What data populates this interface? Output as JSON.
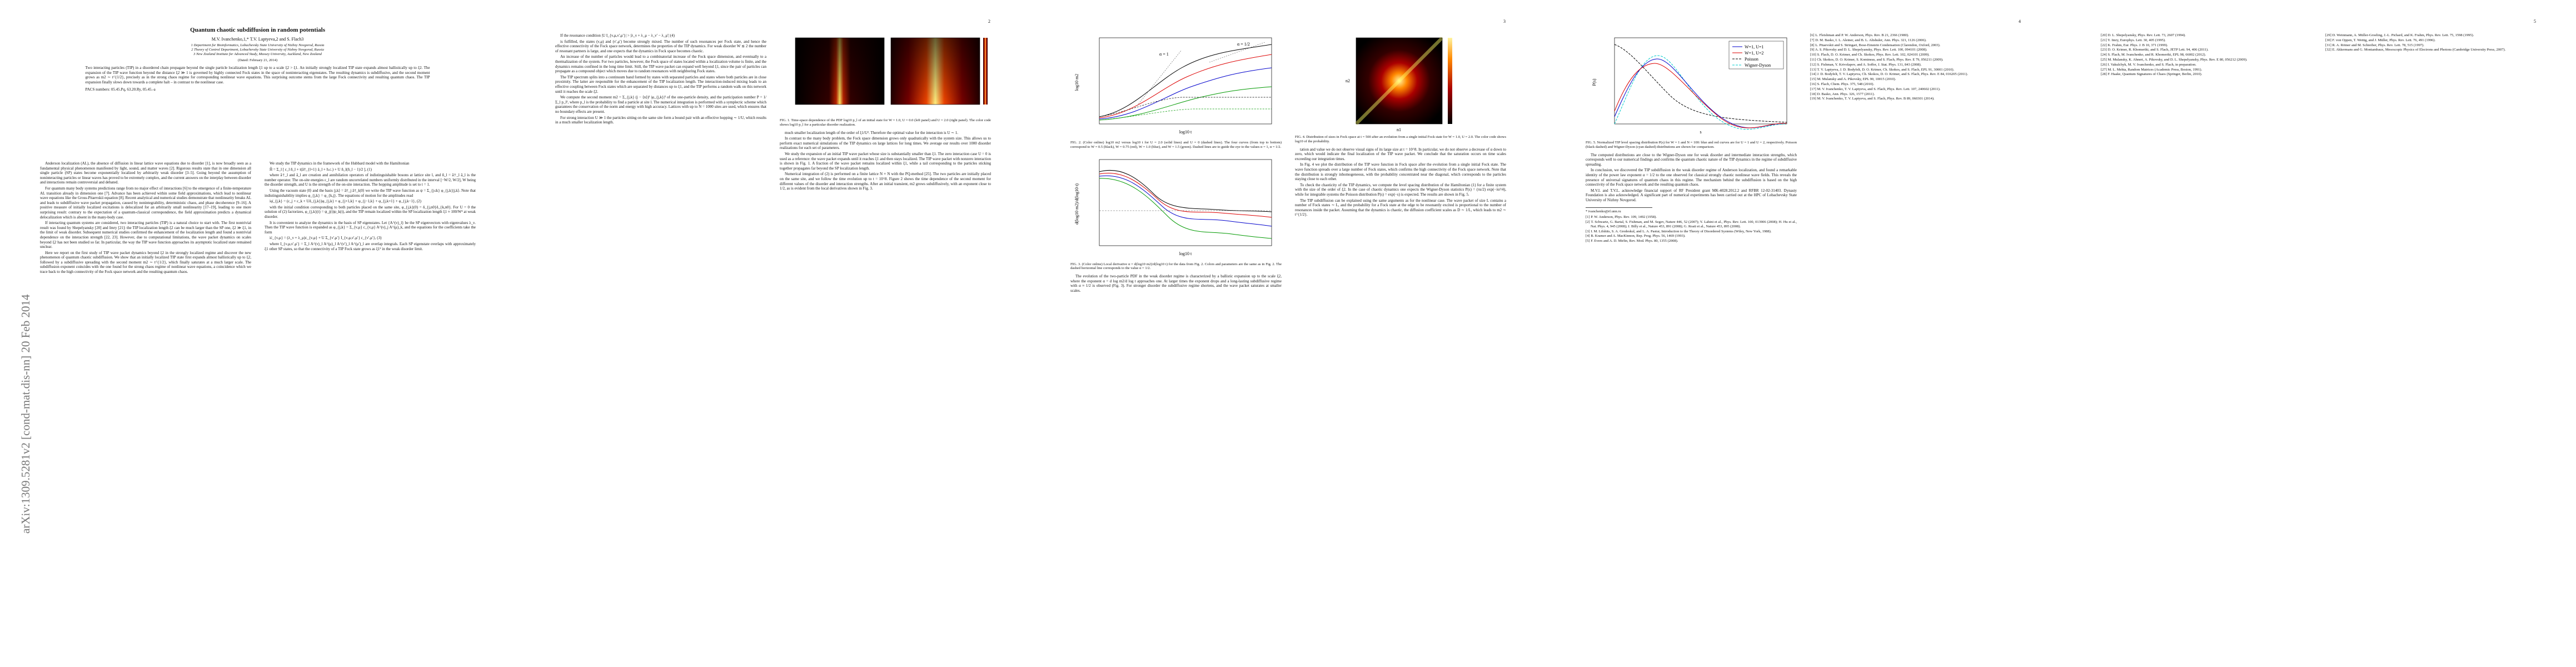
{
  "sidebar": "arXiv:1309.5281v2 [cond-mat.dis-nn] 20 Feb 2014",
  "title": "Quantum chaotic subdiffusion in random potentials",
  "authors": "M.V. Ivanchenko,1,* T.V. Laptyeva,2 and S. Flach3",
  "affiliations": [
    "1 Department for Bioinformatics, Lobachevsky State University of Nizhny Novgorod, Russia",
    "2 Theory of Control Department, Lobachevsky State University of Nizhny Novgorod, Russia",
    "3 New Zealand Institute for Advanced Study, Massey University, Auckland, New Zealand"
  ],
  "date": "(Dated: February 21, 2014)",
  "abstract": "Two interacting particles (TIP) in a disordered chain propagate beyond the single particle localization length ξ1 up to a scale ξ2 > ξ1. An initially strongly localized TIP state expands almost ballistically up to ξ2. The expansion of the TIP wave function beyond the distance ξ2 ≫ 1 is governed by highly connected Fock states in the space of noninteracting eigenstates. The resulting dynamics is subdiffusive, and the second moment grows as m2 ∼ t^{1/2}, precisely as in the strong chaos regime for corresponding nonlinear wave equations. This surprising outcome stems from the large Fock connectivity and resulting quantum chaos. The TIP expansion finally slows down towards a complete halt – in contrast to the nonlinear case.",
  "pacs": "PACS numbers: 05.45.Pq, 63.20.Ry, 05.45.-a",
  "page_numbers": [
    "2",
    "3",
    "4",
    "5"
  ],
  "figures": [
    {
      "caption": "FIG. 1. Time-space dependence of the PDF log10 p_l of an initial state for W = 1.0, U = 0.0 (left panel) and U = 2.0 (right panel). The color code shows log10 p_l for a particular disorder realization."
    },
    {
      "caption": "FIG. 2. (Color online) log10 m2 versus log10 t for U = 2.0 (solid lines) and U = 0 (dashed lines). The four curves (from top to bottom) correspond to W = 0.5 (black), W = 0.75 (red), W = 1.0 (blue), and W = 1.5 (green). Dashed lines are to guide the eye to the values α = 1, α = 1/2.",
      "labels": [
        "log10 m2",
        "log10 t",
        "α = 1",
        "α = 1/2"
      ]
    },
    {
      "caption": "FIG. 3. (Color online) Local derivative α = d(log10 m2)/d(log10 t) for the data from Fig. 2. Colors and parameters are the same as in Fig. 2. The dashed horizontal line corresponds to the value α = 1/2.",
      "labels": [
        "d(log10 m2)/d(log10 t)",
        "log10 t"
      ]
    },
    {
      "caption": "FIG. 4. Distribution of sizes in Fock space at t = 500 after an evolution from a single initial Fock state for W = 1.0, U = 2.0. The color code shows log10 of the probability.",
      "labels": [
        "n1",
        "n2"
      ]
    },
    {
      "caption": "FIG. 5. Normalized TIP level spacing distribution P(s) for W = 1 and N = 100: blue and red curves are for U = 1 and U = 2, respectively. Poisson (black dashed) and Wigner-Dyson (cyan dashed) distributions are shown for comparison.",
      "legend": [
        "W=1, U=1",
        "W=1, U=2",
        "Poisson",
        "Wigner-Dyson"
      ],
      "labels": [
        "P(s)",
        "s"
      ]
    }
  ],
  "pages": [
    {
      "columns": [
        {
          "paragraphs": [
            "Anderson localization (AL), the absence of diffusion in linear lattice wave equations due to disorder [1], is now broadly seen as a fundamental physical phenomenon manifested by light, sound, and matter waves [2]. Rigorous results state that in one dimension all single particle (SP) states become exponentially localized by arbitrarily weak disorder [3–5]. Going beyond the assumption of noninteracting particles or linear waves has proved to be extremely complex, and the current answers on the interplay between disorder and interactions remain controversial and debated.",
            "For quantum many body systems predictions range from no major effect of interactions [6] to the emergence of a finite-temperature AL transition already in dimension one [7]. Advance has been achieved within some field approximations, which lead to nonlinear wave equations like the Gross-Pitaevskii equation [8]. Recent analytical and numerical studies demonstrate that nonlinearity breaks AL and leads to subdiffusive wave packet propagation, caused by nonintegrability, deterministic chaos, and phase decoherence [9–16]. A positive measure of initially localized excitations is delocalized for an arbitrarily small nonlinearity [17–19], leading to one more surprising result: contrary to the expectation of a quantum-classical correspondence, the field approximation predicts a dynamical delocalization which is absent in the many-body case.",
            "If interacting quantum systems are considered, two interacting particles (TIP) is a natural choice to start with. The first nontrivial result was found by Shepelyansky [20] and Imry [21]: the TIP localization length ξ2 can be much larger than the SP one, ξ2 ≫ ξ1, in the limit of weak disorder. Subsequent numerical studies confirmed the enhancement of the localization length and found a nontrivial dependence on the interaction strength [22, 23]. However, due to computational limitations, the wave packet dynamics on scales beyond ξ2 has not been studied so far. In particular, the way the TIP wave function approaches its asymptotic localized state remained unclear.",
            "Here we report on the first study of TIP wave packet dynamics beyond ξ2 in the strongly localized regime and discover the new phenomenon of quantum chaotic subdiffusion. We show that an initially localized TIP state first expands almost ballistically up to ξ2, followed by a subdiffusive spreading with the second moment m2 ∼ t^{1/2}, which finally saturates at a much larger scale. The subdiffusion exponent coincides with the one found for the strong chaos regime of nonlinear wave equations, a coincidence which we trace back to the high connectivity of the Fock space network and the resulting quantum chaos."
          ]
        },
        {
          "paragraphs": [
            "We study the TIP dynamics in the framework of the Hubbard model with the Hamiltonian",
            "Ĥ = Σ_l [ ε_l n̂_l + t(â†_{l+1} â_l + h.c.) + U n̂_l(n̂_l − 1)/2 ],   (1)",
            "where â†_l and â_l are creation and annihilation operators of indistinguishable bosons at lattice site l, and n̂_l = â†_l â_l is the number operator. The on-site energies ε_l are random uncorrelated numbers uniformly distributed in the interval [−W/2, W/2], W being the disorder strength, and U is the strength of the on-site interaction. The hopping amplitude is set to t = 1.",
            "Using the vacuum state |0⟩ and the basis |j,k⟩ = â†_j â†_k|0⟩ we write the TIP wave function as ψ = Σ_{j≤k} φ_{j,k}|j,k⟩. Note that indistinguishability implies φ_{j,k} = φ_{k,j}. The equations of motion for the amplitudes read",
            "iφ̇_{j,k} = (ε_j + ε_k + Uδ_{j,k})φ_{j,k} + φ_{j+1,k} + φ_{j−1,k} + φ_{j,k+1} + φ_{j,k−1},   (2)",
            "with the initial condition corresponding to both particles placed on the same site, φ_{j,k}(0) = δ_{j,n0}δ_{k,n0}. For U = 0 the solution of (2) factorizes, φ_{j,k}(t) = ψ_j(t)ψ_k(t), and the TIP remain localized within the SP localization length ξ1 ≈ 100/W² at weak disorder.",
            "It is convenient to analyze the dynamics in the basis of SP eigenstates. Let {A^(ν)_l} be the SP eigenvectors with eigenvalues λ_ν. Then the TIP wave function is expanded as φ_{j,k} = Σ_{ν,μ} c_{ν,μ} A^(ν)_j A^(μ)_k, and the equations for the coefficients take the form",
            "iċ_{ν,μ} = (λ_ν + λ_μ)c_{ν,μ} + U Σ_{ν′,μ′} I_{ν,μ,ν′,μ′} c_{ν′,μ′},   (3)",
            "where I_{ν,μ,ν′,μ′} = Σ_l A^(ν)_l A^(μ)_l A^(ν′)_l A^(μ′)_l are overlap integrals. Each SP eigenstate overlaps with approximately ξ1 other SP states, so that the connectivity of a TIP Fock state grows as ξ1² in the weak disorder limit."
          ]
        }
      ]
    },
    {
      "columns": [
        {
          "paragraphs": [
            "If the resonance condition |U I_{ν,μ,ν′,μ′}| > |λ_ν + λ_μ − λ_ν′ − λ_μ′|   (4)",
            "is fulfilled, the states (ν,μ) and (ν′,μ′) become strongly mixed. The number of such resonances per Fock state, and hence the effective connectivity of the Fock space network, determines the properties of the TIP dynamics. For weak disorder W ≲ 2 the number of resonant partners is large, and one expects that the dynamics in Fock space becomes chaotic.",
            "An increase of the number of particles would lead to a combinatorial increase of the Fock space dimension, and eventually to a thermalization of the system. For two particles, however, the Fock space of states located within a localization volume is finite, and the dynamics remains confined in the long time limit. Still, the TIP wave packet can expand well beyond ξ1, since the pair of particles can propagate as a compound object which moves due to random resonances with neighboring Fock states.",
            "The TIP spectrum splits into a continuum band formed by states with separated particles and states where both particles are in close proximity. The latter are responsible for the enhancement of the TIP localization length. The interaction-induced mixing leads to an effective coupling between Fock states which are separated by distances up to ξ1, and the TIP performs a random walk on this network until it reaches the scale ξ2.",
            "We compute the second moment m2 = Σ_{j,k} (j − ⟨n⟩)² |φ_{j,k}|² of the one-particle density, and the participation number P = 1/Σ_l p_l², where p_l is the probability to find a particle at site l. The numerical integration is performed with a symplectic scheme which guarantees the conservation of the norm and energy with high accuracy. Lattices with up to N = 1000 sites are used, which ensures that no boundary effects are present.",
            "For strong interaction U ≫ 1 the particles sitting on the same site form a bound pair with an effective hopping ∼ 1/U, which results in a much smaller localization length."
          ]
        },
        {
          "paragraphs": [
            "much smaller localization length of the order of ξ1/U². Therefore the optimal value for the interaction is U ∼ 1.",
            "In contrast to the many body problem, the Fock space dimension grows only quadratically with the system size. This allows us to perform exact numerical simulations of the TIP dynamics on large lattices for long times. We average our results over 1000 disorder realizations for each set of parameters.",
            "We study the expansion of an initial TIP wave packet whose size is substantially smaller than ξ1. The zero interaction case U = 0 is used as a reference: the wave packet expands until it reaches ξ1 and then stays localized. The TIP wave packet with nonzero interaction is shown in Fig. 1. A fraction of the wave packet remains localized within ξ1, while a tail corresponding to the particles sticking together propagates far beyond the SP localization length.",
            "Numerical integration of (2) is performed on a finite lattice N × N with the PQ-method [25]. The two particles are initially placed on the same site, and we follow the time evolution up to t = 10^8. Figure 2 shows the time dependence of the second moment for different values of the disorder and interaction strengths. After an initial transient, m2 grows subdiffusively, with an exponent close to 1/2, as is evident from the local derivatives shown in Fig. 3."
          ]
        }
      ]
    },
    {
      "columns": [
        {
          "paragraphs": [
            "The evolution of the two-particle PDF in the weak disorder regime is characterized by a ballistic expansion up to the scale ξ2, where the exponent α = d log m2/d log t approaches one. At larger times the exponent drops and a long-lasting subdiffusive regime with α ≈ 1/2 is observed (Fig. 3). For stronger disorder the subdiffusive regime shortens, and the wave packet saturates at smaller scales."
          ]
        },
        {
          "paragraphs": [
            "tation and value we do not observe visual signs of its large size at t = 10^8. In particular, we do not observe a decrease of α down to zero, which would indicate the final localization of the TIP wave packet. We conclude that the saturation occurs on time scales exceeding our integration times.",
            "In Fig. 4 we plot the distribution of the TIP wave function in Fock space after the evolution from a single initial Fock state. The wave function spreads over a large number of Fock states, which confirms the high connectivity of the Fock space network. Note that the distribution is strongly inhomogeneous, with the probability concentrated near the diagonal, which corresponds to the particles staying close to each other.",
            "To check the chaoticity of the TIP dynamics, we compute the level spacing distribution of the Hamiltonian (1) for a finite system with the size of the order of ξ2. In the case of chaotic dynamics one expects the Wigner-Dyson statistics P(s) = (πs/2) exp(−πs²/4), while for integrable systems the Poisson distribution P(s) = exp(−s) is expected. The results are shown in Fig. 5.",
            "The TIP subdiffusion can be explained using the same arguments as for the nonlinear case. The wave packet of size L contains a number of Fock states ∼ L, and the probability for a Fock state at the edge to be resonantly excited is proportional to the number of resonances inside the packet. Assuming that the dynamics is chaotic, the diffusion coefficient scales as D ∼ 1/L, which leads to m2 ∼ t^{1/2}."
          ]
        }
      ]
    },
    {
      "columns": [
        {
          "paragraphs": [
            "The computed distributions are close to the Wigner-Dyson one for weak disorder and intermediate interaction strengths, which corresponds well to our numerical findings and confirms the quantum chaotic nature of the TIP dynamics in the regime of subdiffusive spreading.",
            "In conclusion, we discovered the TIP subdiffusion in the weak disorder regime of Anderson localization, and found a remarkable identity of the power law exponent α = 1/2 to the one observed for classical strongly chaotic nonlinear wave fields. This reveals the presence of universal signatures of quantum chaos in this regime. The mechanism behind the subdiffusion is based on the high connectivity of the Fock space network and the resulting quantum chaos.",
            "M.V.I. and T.V.L. acknowledge financial support of RF President grant MK-4028.2012.2 and RFBR 12-02-31403. Dynasty Foundation is also acknowledged. A significant part of numerical experiments has been carried out at the HPC of Lobachevsky State University of Nizhny Novgorod."
          ],
          "footnote": "* ivanchenko@rf.unn.ru",
          "references": [
            "[1] P. W. Anderson, Phys. Rev. 109, 1492 (1958).",
            "[2] T. Schwartz, G. Bartal, S. Fishman, and M. Segev, Nature 446, 52 (2007); Y. Lahini et al., Phys. Rev. Lett. 100, 013906 (2008); H. Hu et al., Nat. Phys. 4, 945 (2008); J. Billy et al., Nature 453, 891 (2008); G. Roati et al., Nature 453, 895 (2008).",
            "[3] I. M. Lifshits, S. A. Gredeskul, and L. A. Pastur, Introduction to the Theory of Disordered Systems (Wiley, New York, 1988).",
            "[4] B. Kramer and A. MacKinnon, Rep. Prog. Phys. 56, 1469 (1993).",
            "[5] F. Evers and A. D. Mirlin, Rev. Mod. Phys. 80, 1355 (2008)."
          ]
        },
        {
          "references": [
            "[6] L. Fleishman and P. W. Anderson, Phys. Rev. B 21, 2366 (1980).",
            "[7] D. M. Basko, I. L. Aleiner, and B. L. Altshuler, Ann. Phys. 321, 1126 (2006).",
            "[8] L. Pitaevskii and S. Stringari, Bose-Einstein Condensation (Clarendon, Oxford, 2003).",
            "[9] A. S. Pikovsky and D. L. Shepelyansky, Phys. Rev. Lett. 100, 094101 (2008).",
            "[10] S. Flach, D. O. Krimer, and Ch. Skokos, Phys. Rev. Lett. 102, 024101 (2009).",
            "[11] Ch. Skokos, D. O. Krimer, S. Komineas, and S. Flach, Phys. Rev. E 79, 056211 (2009).",
            "[12] S. Fishman, Y. Krivolapov, and A. Soffer, J. Stat. Phys. 131, 843 (2008).",
            "[13] T. V. Laptyeva, J. D. Bodyfelt, D. O. Krimer, Ch. Skokos, and S. Flach, EPL 91, 30001 (2010).",
            "[14] J. D. Bodyfelt, T. V. Laptyeva, Ch. Skokos, D. O. Krimer, and S. Flach, Phys. Rev. E 84, 016205 (2011).",
            "[15] M. Mulansky and A. Pikovsky, EPL 90, 10015 (2010).",
            "[16] S. Flach, Chem. Phys. 375, 548 (2010).",
            "[17] M. V. Ivanchenko, T. V. Laptyeva, and S. Flach, Phys. Rev. Lett. 107, 240602 (2011).",
            "[18] D. Basko, Ann. Phys. 326, 1577 (2011).",
            "[19] M. V. Ivanchenko, T. V. Laptyeva, and S. Flach, Phys. Rev. B 89, 060301 (2014)."
          ]
        }
      ]
    },
    {
      "columns": [
        {
          "references": [
            "[20] D. L. Shepelyansky, Phys. Rev. Lett. 73, 2607 (1994).",
            "[21] Y. Imry, Europhys. Lett. 30, 405 (1995).",
            "[22] K. Frahm, Eur. Phys. J. B 10, 371 (1999).",
            "[23] D. O. Krimer, R. Khomeriki, and S. Flach, JETP Lett. 94, 406 (2011).",
            "[24] S. Flach, M. Ivanchenko, and R. Khomeriki, EPL 98, 66002 (2012).",
            "[25] M. Mulansky, K. Ahnert, A. Pikovsky, and D. L. Shepelyansky, Phys. Rev. E 80, 056212 (2009).",
            "[26] I. Vakulchyk, M. V. Ivanchenko, and S. Flach, in preparation.",
            "[27] M. L. Mehta, Random Matrices (Academic Press, Boston, 1991).",
            "[28] F. Haake, Quantum Signatures of Chaos (Springer, Berlin, 2010)."
          ]
        },
        {
          "references": [
            "[29] D. Weinmann, A. Müller-Groeling, J.-L. Pichard, and K. Frahm, Phys. Rev. Lett. 75, 1598 (1995).",
            "[30] F. von Oppen, T. Wettig, and J. Müller, Phys. Rev. Lett. 76, 491 (1996).",
            "[31] R. A. Römer and M. Schreiber, Phys. Rev. Lett. 78, 515 (1997).",
            "[32] E. Akkermans and G. Montambaux, Mesoscopic Physics of Electrons and Photons (Cambridge University Press, 2007)."
          ]
        }
      ]
    }
  ]
}
